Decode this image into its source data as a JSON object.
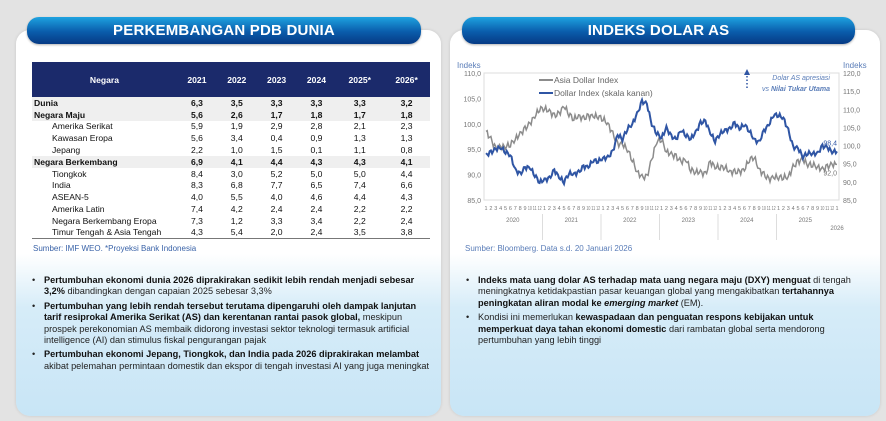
{
  "left_panel": {
    "title": "PERKEMBANGAN PDB DUNIA",
    "table": {
      "headers": [
        "Negara",
        "2021",
        "2022",
        "2023",
        "2024",
        "2025*",
        "2026*"
      ],
      "rows": [
        {
          "type": "bold",
          "cells": [
            "Dunia",
            "6,3",
            "3,5",
            "3,3",
            "3,3",
            "3,3",
            "3,2"
          ]
        },
        {
          "type": "bold",
          "cells": [
            "Negara Maju",
            "5,6",
            "2,6",
            "1,7",
            "1,8",
            "1,7",
            "1,8"
          ]
        },
        {
          "type": "sub",
          "cells": [
            "Amerika Serikat",
            "5,9",
            "1,9",
            "2,9",
            "2,8",
            "2,1",
            "2,3"
          ]
        },
        {
          "type": "sub",
          "cells": [
            "Kawasan Eropa",
            "5,6",
            "3,4",
            "0,4",
            "0,9",
            "1,3",
            "1,3"
          ]
        },
        {
          "type": "sub",
          "cells": [
            "Jepang",
            "2,2",
            "1,0",
            "1,5",
            "0,1",
            "1,1",
            "0,8"
          ]
        },
        {
          "type": "bold",
          "cells": [
            "Negara Berkembang",
            "6,9",
            "4,1",
            "4,4",
            "4,3",
            "4,3",
            "4,1"
          ]
        },
        {
          "type": "sub",
          "cells": [
            "Tiongkok",
            "8,4",
            "3,0",
            "5,2",
            "5,0",
            "5,0",
            "4,4"
          ]
        },
        {
          "type": "sub",
          "cells": [
            "India",
            "8,3",
            "6,8",
            "7,7",
            "6,5",
            "7,4",
            "6,6"
          ]
        },
        {
          "type": "sub",
          "cells": [
            "ASEAN-5",
            "4,0",
            "5,5",
            "4,0",
            "4,6",
            "4,4",
            "4,3"
          ]
        },
        {
          "type": "sub",
          "cells": [
            "Amerika Latin",
            "7,4",
            "4,2",
            "2,4",
            "2,4",
            "2,2",
            "2,2"
          ]
        },
        {
          "type": "sub",
          "cells": [
            "Negara Berkembang Eropa",
            "7,3",
            "1,2",
            "3,3",
            "3,4",
            "2,2",
            "2,4"
          ]
        },
        {
          "type": "sub",
          "cells": [
            "Timur Tengah & Asia Tengah",
            "4,3",
            "5,4",
            "2,0",
            "2,4",
            "3,5",
            "3,8"
          ]
        }
      ],
      "source": "Sumber: IMF WEO. *Proyeksi Bank Indonesia"
    },
    "bullets": [
      {
        "bold": "Pertumbuhan ekonomi dunia 2026 diprakirakan sedikit lebih rendah menjadi sebesar 3,2%",
        "rest": " dibandingkan dengan capaian 2025 sebesar 3,3%"
      },
      {
        "bold": "Pertumbuhan yang lebih rendah tersebut terutama dipengaruhi oleh dampak lanjutan tarif resiprokal Amerika Serikat (AS) dan kerentanan rantai pasok global,",
        "rest": " meskipun prospek perekonomian AS membaik didorong investasi sektor teknologi termasuk artificial intelligence (AI) dan stimulus fiskal pengurangan pajak"
      },
      {
        "bold": "Pertumbuhan ekonomi Jepang, Tiongkok, dan India pada 2026 diprakirakan melambat",
        "rest": " akibat pelemahan permintaan domestik dan ekspor di tengah investasi AI yang juga meningkat"
      }
    ]
  },
  "right_panel": {
    "title": "INDEKS DOLAR AS",
    "source": "Sumber: Bloomberg. Data s.d. 20 Januari 2026",
    "bullets": [
      {
        "b1": "Indeks mata uang dolar AS terhadap mata uang negara maju (DXY) menguat",
        "t1": " di tengah meningkatnya ketidakpastian pasar keuangan global yang mengakibatkan ",
        "b2": "tertahannya peningkatan aliran modal ke ",
        "i": "emerging market",
        "t2": " (EM)."
      },
      {
        "t0": "Kondisi ini memerlukan ",
        "b1": "kewaspadaan dan penguatan respons kebijakan untuk memperkuat daya tahan ekonomi domestic",
        "t1": " dari rambatan global serta mendorong pertumbuhan yang lebih tinggi"
      }
    ]
  },
  "chart_data": {
    "type": "line",
    "ylabel_left": "Indeks",
    "ylabel_right": "Indeks",
    "ylim_left": [
      85,
      110
    ],
    "ylim_right": [
      85,
      120
    ],
    "yticks_left": [
      "85,0",
      "90,0",
      "95,0",
      "100,0",
      "105,0",
      "110,0"
    ],
    "yticks_right": [
      "85,0",
      "90,0",
      "95,0",
      "100,0",
      "105,0",
      "110,0",
      "115,0",
      "120,0"
    ],
    "month_ticks": [
      "1",
      "2",
      "3",
      "4",
      "5",
      "6",
      "7",
      "8",
      "9",
      "10",
      "11",
      "12"
    ],
    "years": [
      "2020",
      "2021",
      "2022",
      "2023",
      "2024",
      "2025",
      "2026"
    ],
    "annotation": {
      "line1": "Dolar AS apresiasi",
      "line2_pre": "vs ",
      "line2_bold": "Nilai Tukar Utama"
    },
    "end_labels": {
      "dxy": "98,4",
      "asia": "92,0"
    },
    "series": [
      {
        "name": "Asia Dollar Index",
        "axis": "left",
        "color": "#8c8c8c",
        "values": [
          98.5,
          97,
          95,
          95.5,
          95.5,
          96,
          97,
          98,
          99,
          100,
          101.5,
          103,
          103,
          102.5,
          101.5,
          102,
          103.5,
          102,
          101,
          101.5,
          101,
          101.5,
          101.5,
          101.5,
          101,
          100,
          98,
          96,
          96,
          95,
          93,
          90.5,
          89.5,
          89.5,
          93,
          96.5,
          97,
          94.5,
          94,
          93.5,
          92.5,
          93,
          91,
          90.5,
          90.5,
          90,
          92.5,
          91.5,
          91.5,
          91.5,
          90.5,
          90.5,
          90.5,
          91,
          93,
          93.5,
          91,
          90,
          89,
          89.5,
          89.5,
          89.5,
          89.5,
          91.5,
          92.5,
          93,
          92,
          92,
          91.5,
          91,
          91.5,
          92,
          92
        ]
      },
      {
        "name": "Dollar Index (skala kanan)",
        "axis": "right",
        "color": "#2f55a4",
        "values": [
          97.4,
          98.1,
          99,
          99.5,
          98.3,
          97.4,
          93.3,
          92.1,
          93.9,
          94,
          91.9,
          89.9,
          90.6,
          90.9,
          93.2,
          91.3,
          90,
          92.4,
          92.1,
          92.6,
          94.2,
          94.1,
          96,
          95.7,
          96.5,
          96.7,
          98.3,
          103,
          101.8,
          104.7,
          105.9,
          108.7,
          112.1,
          111.5,
          105.9,
          103.5,
          102.1,
          104.9,
          102.5,
          101.7,
          104.3,
          102.9,
          101.9,
          103.6,
          106.2,
          106.7,
          103.5,
          101.3,
          103.3,
          104.2,
          104.5,
          106.2,
          104.6,
          105.9,
          104.1,
          101.7,
          100.8,
          104,
          105.7,
          108.5,
          108.4,
          107.6,
          104.2,
          99.5,
          99.3,
          96.9,
          98,
          97.8,
          97.8,
          99.8,
          99.5,
          98.3,
          98.4
        ]
      }
    ]
  }
}
